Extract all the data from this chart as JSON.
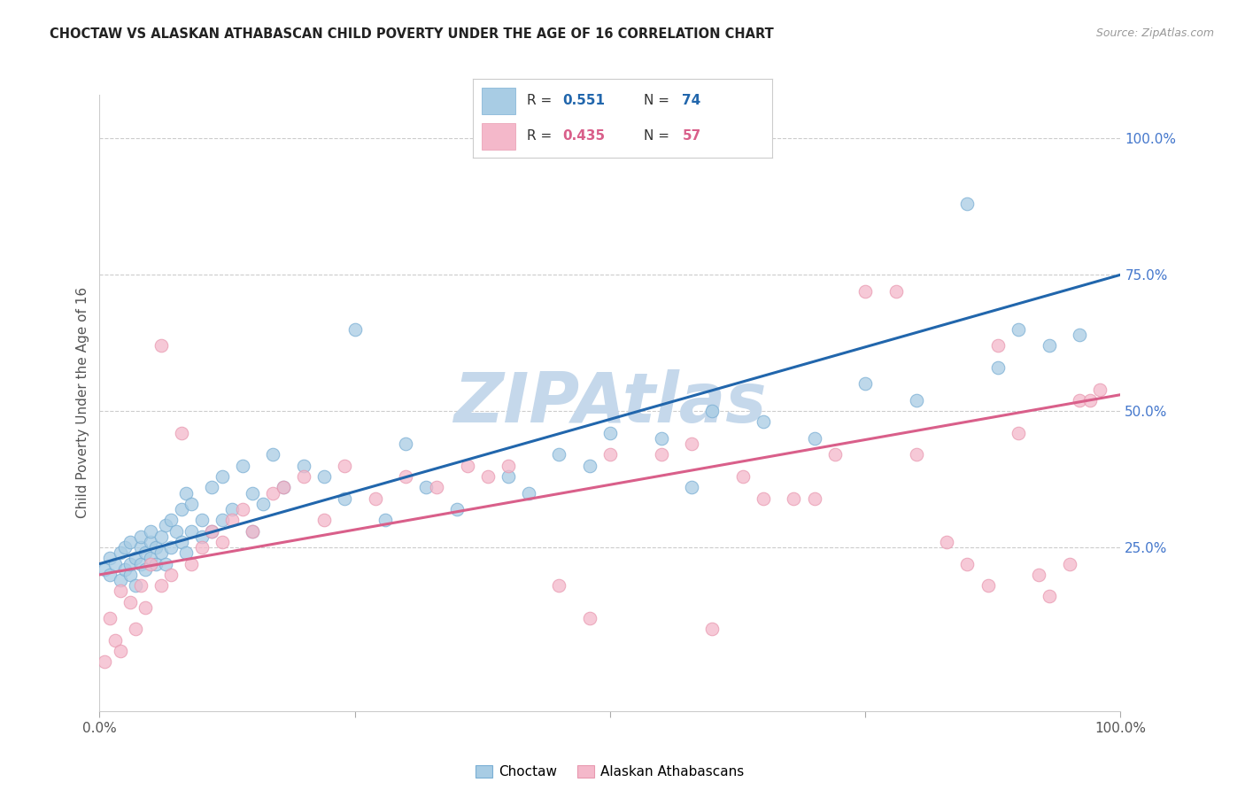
{
  "title": "CHOCTAW VS ALASKAN ATHABASCAN CHILD POVERTY UNDER THE AGE OF 16 CORRELATION CHART",
  "source_text": "Source: ZipAtlas.com",
  "ylabel": "Child Poverty Under the Age of 16",
  "xlim": [
    0,
    1
  ],
  "ylim": [
    -0.05,
    1.08
  ],
  "ytick_positions": [
    0.25,
    0.5,
    0.75,
    1.0
  ],
  "ytick_labels": [
    "25.0%",
    "50.0%",
    "75.0%",
    "100.0%"
  ],
  "blue_color": "#a8cce4",
  "blue_edge_color": "#7aafd4",
  "blue_line_color": "#2166ac",
  "pink_color": "#f4b8ca",
  "pink_edge_color": "#e899b0",
  "pink_line_color": "#d95f8a",
  "blue_R": 0.551,
  "blue_N": 74,
  "pink_R": 0.435,
  "pink_N": 57,
  "legend_label_blue": "Choctaw",
  "legend_label_pink": "Alaskan Athabascans",
  "blue_scatter_x": [
    0.005,
    0.01,
    0.01,
    0.015,
    0.02,
    0.02,
    0.025,
    0.025,
    0.03,
    0.03,
    0.03,
    0.035,
    0.035,
    0.04,
    0.04,
    0.04,
    0.045,
    0.045,
    0.05,
    0.05,
    0.05,
    0.055,
    0.055,
    0.06,
    0.06,
    0.065,
    0.065,
    0.07,
    0.07,
    0.075,
    0.08,
    0.08,
    0.085,
    0.085,
    0.09,
    0.09,
    0.1,
    0.1,
    0.11,
    0.11,
    0.12,
    0.12,
    0.13,
    0.14,
    0.15,
    0.15,
    0.16,
    0.17,
    0.18,
    0.2,
    0.22,
    0.24,
    0.25,
    0.28,
    0.3,
    0.32,
    0.35,
    0.4,
    0.42,
    0.45,
    0.48,
    0.5,
    0.55,
    0.58,
    0.6,
    0.65,
    0.7,
    0.75,
    0.8,
    0.85,
    0.88,
    0.9,
    0.93,
    0.96
  ],
  "blue_scatter_y": [
    0.21,
    0.2,
    0.23,
    0.22,
    0.19,
    0.24,
    0.21,
    0.25,
    0.2,
    0.22,
    0.26,
    0.23,
    0.18,
    0.22,
    0.25,
    0.27,
    0.21,
    0.24,
    0.23,
    0.26,
    0.28,
    0.22,
    0.25,
    0.24,
    0.27,
    0.22,
    0.29,
    0.25,
    0.3,
    0.28,
    0.26,
    0.32,
    0.24,
    0.35,
    0.28,
    0.33,
    0.27,
    0.3,
    0.28,
    0.36,
    0.3,
    0.38,
    0.32,
    0.4,
    0.28,
    0.35,
    0.33,
    0.42,
    0.36,
    0.4,
    0.38,
    0.34,
    0.65,
    0.3,
    0.44,
    0.36,
    0.32,
    0.38,
    0.35,
    0.42,
    0.4,
    0.46,
    0.45,
    0.36,
    0.5,
    0.48,
    0.45,
    0.55,
    0.52,
    0.88,
    0.58,
    0.65,
    0.62,
    0.64
  ],
  "pink_scatter_x": [
    0.005,
    0.01,
    0.015,
    0.02,
    0.02,
    0.03,
    0.035,
    0.04,
    0.045,
    0.05,
    0.06,
    0.06,
    0.07,
    0.08,
    0.09,
    0.1,
    0.11,
    0.12,
    0.13,
    0.14,
    0.15,
    0.17,
    0.18,
    0.2,
    0.22,
    0.24,
    0.27,
    0.3,
    0.33,
    0.36,
    0.38,
    0.4,
    0.45,
    0.48,
    0.5,
    0.55,
    0.58,
    0.6,
    0.63,
    0.65,
    0.68,
    0.7,
    0.72,
    0.75,
    0.78,
    0.8,
    0.83,
    0.85,
    0.87,
    0.88,
    0.9,
    0.92,
    0.93,
    0.95,
    0.96,
    0.97,
    0.98
  ],
  "pink_scatter_y": [
    0.04,
    0.12,
    0.08,
    0.17,
    0.06,
    0.15,
    0.1,
    0.18,
    0.14,
    0.22,
    0.62,
    0.18,
    0.2,
    0.46,
    0.22,
    0.25,
    0.28,
    0.26,
    0.3,
    0.32,
    0.28,
    0.35,
    0.36,
    0.38,
    0.3,
    0.4,
    0.34,
    0.38,
    0.36,
    0.4,
    0.38,
    0.4,
    0.18,
    0.12,
    0.42,
    0.42,
    0.44,
    0.1,
    0.38,
    0.34,
    0.34,
    0.34,
    0.42,
    0.72,
    0.72,
    0.42,
    0.26,
    0.22,
    0.18,
    0.62,
    0.46,
    0.2,
    0.16,
    0.22,
    0.52,
    0.52,
    0.54
  ],
  "blue_line_x": [
    0.0,
    1.0
  ],
  "blue_line_y": [
    0.22,
    0.75
  ],
  "pink_line_x": [
    0.0,
    1.0
  ],
  "pink_line_y": [
    0.2,
    0.53
  ],
  "watermark_text": "ZIPAtlas",
  "watermark_color": "#c5d8eb",
  "background_color": "#ffffff",
  "grid_color": "#cccccc"
}
